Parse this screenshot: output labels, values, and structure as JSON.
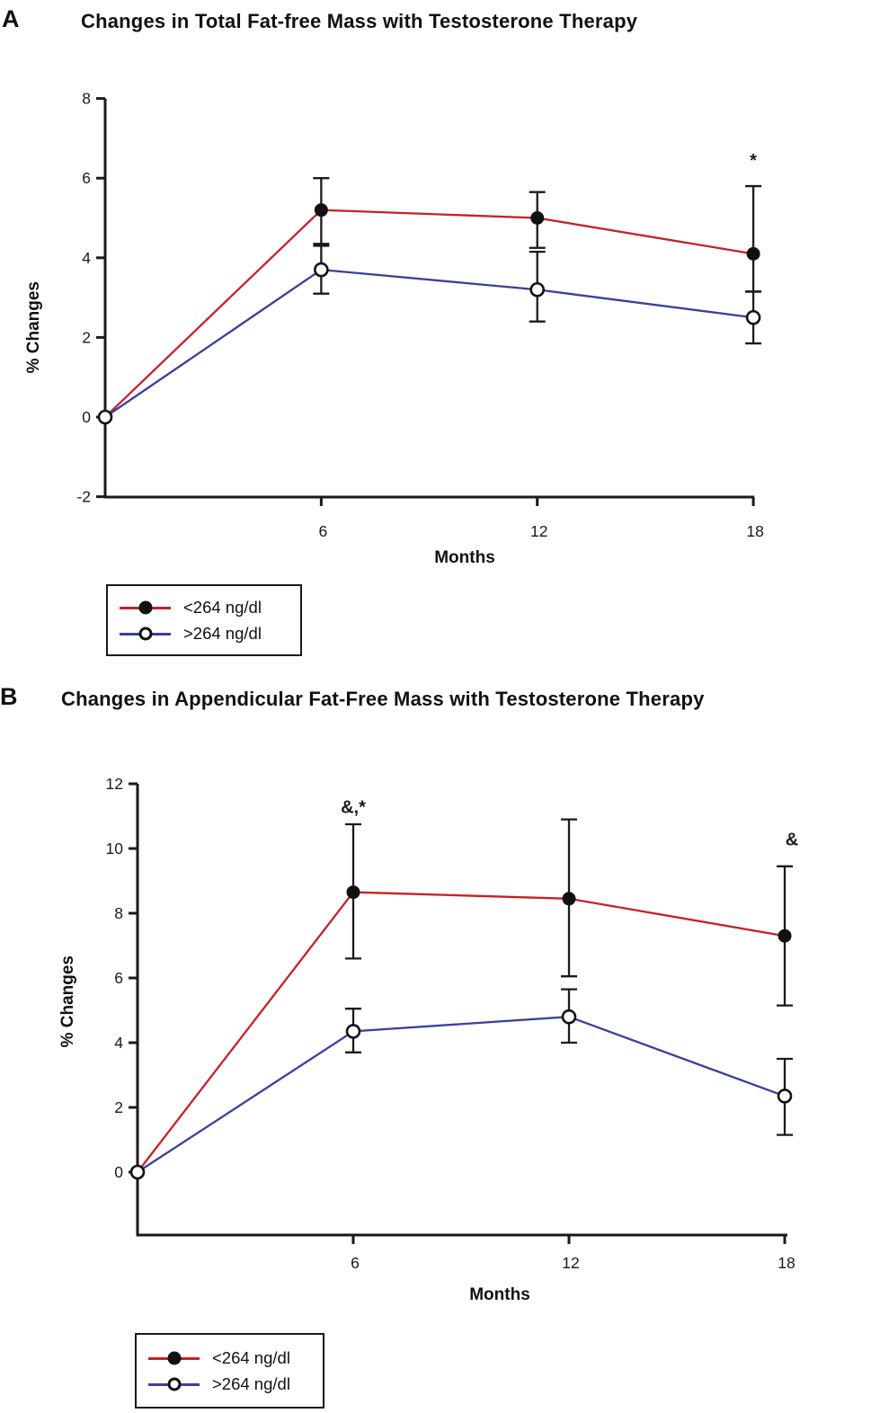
{
  "colors": {
    "red": "#c82026",
    "blue": "#3a3f9c",
    "black": "#1a1a1a"
  },
  "chart_data": [
    {
      "panel_label": "A",
      "type": "line",
      "title": "Changes in Total Fat-free Mass with Testosterone Therapy",
      "xlabel": "Months",
      "ylabel": "% Changes",
      "x": [
        0,
        6,
        12,
        18
      ],
      "xticks": [
        6,
        12,
        18
      ],
      "yticks": [
        8,
        6,
        4,
        2,
        0,
        -2
      ],
      "ylim": [
        -2,
        8
      ],
      "xlim": [
        0,
        18
      ],
      "grid": false,
      "legend_position": "below-left",
      "series": [
        {
          "name": "<264 ng/dl",
          "color_key": "red",
          "marker": "filled-circle",
          "values": [
            0,
            5.2,
            5.0,
            4.1
          ],
          "err_low": [
            null,
            4.35,
            4.25,
            3.15
          ],
          "err_high": [
            null,
            6.0,
            5.65,
            5.8
          ]
        },
        {
          "name": ">264 ng/dl",
          "color_key": "blue",
          "marker": "open-circle",
          "values": [
            0,
            3.7,
            3.2,
            2.5
          ],
          "err_low": [
            null,
            3.1,
            2.4,
            1.85
          ],
          "err_high": [
            null,
            4.3,
            4.15,
            3.15
          ]
        }
      ],
      "annotations": [
        {
          "text": "*",
          "x": 18,
          "y": 6.3
        }
      ]
    },
    {
      "panel_label": "B",
      "type": "line",
      "title": "Changes in Appendicular Fat-Free Mass with Testosterone Therapy",
      "xlabel": "Months",
      "ylabel": "% Changes",
      "x": [
        0,
        6,
        12,
        18
      ],
      "xticks": [
        6,
        12,
        18
      ],
      "yticks": [
        12,
        10,
        8,
        6,
        4,
        2,
        0
      ],
      "ylim": [
        -1.9,
        12
      ],
      "xlim": [
        0,
        18
      ],
      "grid": false,
      "legend_position": "below-left",
      "series": [
        {
          "name": "<264 ng/dl",
          "color_key": "red",
          "marker": "filled-circle",
          "values": [
            0,
            8.65,
            8.45,
            7.3
          ],
          "err_low": [
            null,
            6.6,
            6.05,
            5.15
          ],
          "err_high": [
            null,
            10.75,
            10.9,
            9.45
          ]
        },
        {
          "name": ">264 ng/dl",
          "color_key": "blue",
          "marker": "open-circle",
          "values": [
            0,
            4.35,
            4.8,
            2.35
          ],
          "err_low": [
            null,
            3.7,
            4.0,
            1.15
          ],
          "err_high": [
            null,
            5.05,
            5.65,
            3.5
          ]
        }
      ],
      "annotations": [
        {
          "text": "&,*",
          "x": 6,
          "y": 11.1
        },
        {
          "text": "&",
          "x": 18.2,
          "y": 10.1
        }
      ]
    }
  ]
}
